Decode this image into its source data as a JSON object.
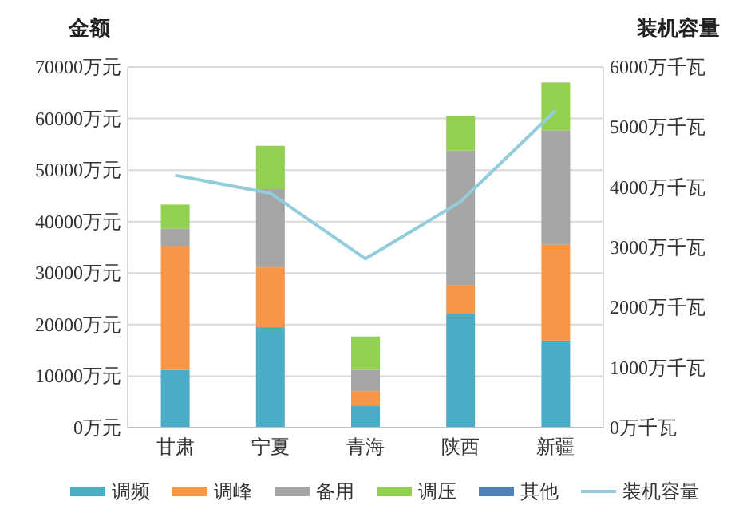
{
  "chart_data": {
    "type": "bar",
    "stacked": true,
    "ylabel": "金额",
    "y2label": "装机容量",
    "categories": [
      "甘肃",
      "宁夏",
      "青海",
      "陕西",
      "新疆"
    ],
    "series": [
      {
        "name": "调频",
        "color": "#4bacc6",
        "values": [
          11200,
          19500,
          4300,
          22100,
          16900
        ]
      },
      {
        "name": "调峰",
        "color": "#f79646",
        "values": [
          24100,
          11600,
          2800,
          5500,
          18600
        ]
      },
      {
        "name": "备用",
        "color": "#a5a5a5",
        "values": [
          3300,
          15200,
          4100,
          26200,
          22200
        ]
      },
      {
        "name": "调压",
        "color": "#92d050",
        "values": [
          4700,
          8400,
          6500,
          6700,
          9300
        ]
      },
      {
        "name": "其他",
        "color": "#4f81bd",
        "values": [
          0,
          0,
          0,
          0,
          0
        ]
      },
      {
        "name": "装机容量",
        "color": "#93cddd",
        "type": "line",
        "axis": "y2",
        "values": [
          4200,
          3900,
          2810,
          3760,
          5280
        ]
      }
    ],
    "ylim": [
      0,
      70000
    ],
    "yticks": [
      {
        "value": 0,
        "label": "0万元"
      },
      {
        "value": 10000,
        "label": "10000万元"
      },
      {
        "value": 20000,
        "label": "20000万元"
      },
      {
        "value": 30000,
        "label": "30000万元"
      },
      {
        "value": 40000,
        "label": "40000万元"
      },
      {
        "value": 50000,
        "label": "50000万元"
      },
      {
        "value": 60000,
        "label": "60000万元"
      },
      {
        "value": 70000,
        "label": "70000万元"
      }
    ],
    "y2lim": [
      0,
      6000
    ],
    "y2ticks": [
      {
        "value": 0,
        "label": "0万千瓦"
      },
      {
        "value": 1000,
        "label": "1000万千瓦"
      },
      {
        "value": 2000,
        "label": "2000万千瓦"
      },
      {
        "value": 3000,
        "label": "3000万千瓦"
      },
      {
        "value": 4000,
        "label": "4000万千瓦"
      },
      {
        "value": 5000,
        "label": "5000万千瓦"
      },
      {
        "value": 6000,
        "label": "6000万千瓦"
      }
    ],
    "grid": "y",
    "legend": "bottom"
  }
}
